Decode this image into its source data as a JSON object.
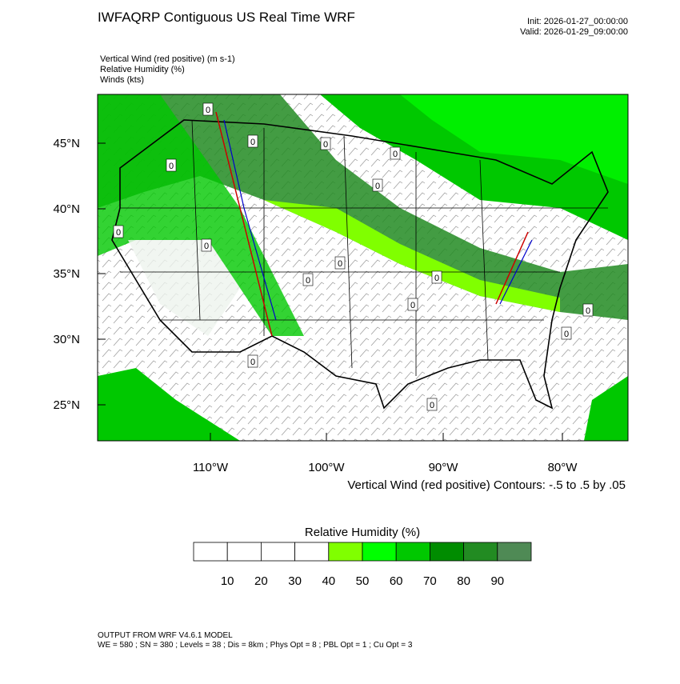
{
  "header": {
    "title": "IWFAQRP Contiguous US Real Time WRF",
    "init": "Init: 2026-01-27_00:00:00",
    "valid": "Valid: 2026-01-29_09:00:00"
  },
  "fields": [
    "Vertical Wind (red positive)   (m s-1)",
    "Relative Humidity   (%)",
    "Winds   (kts)"
  ],
  "map": {
    "lat_labels": [
      "45°N",
      "40°N",
      "35°N",
      "30°N",
      "25°N"
    ],
    "lon_labels": [
      "110°W",
      "100°W",
      "90°W",
      "80°W"
    ],
    "contour_note": "Vertical Wind (red positive) Contours: -.5 to .5 by .05",
    "contour_labels": [
      "0",
      "0",
      "0",
      "0",
      "0",
      "0",
      "0",
      "0",
      "0",
      "0",
      "0",
      "0",
      "0",
      "0",
      "0",
      "0"
    ]
  },
  "colorbar": {
    "title": "Relative Humidity  (%)",
    "ticks": [
      10,
      20,
      30,
      40,
      50,
      60,
      70,
      80,
      90
    ],
    "colors": [
      "#ffffff",
      "#ffffff",
      "#ffffff",
      "#ffffff",
      "#80ff00",
      "#00ff00",
      "#00c800",
      "#008c00",
      "#228b22",
      "#4f8a55"
    ]
  },
  "footer": {
    "model": "OUTPUT FROM WRF V4.6.1 MODEL",
    "settings": "WE = 580 ; SN = 380 ; Levels = 38 ; Dis = 8km ; Phys Opt = 8 ; PBL Opt = 1 ; Cu Opt = 3"
  }
}
